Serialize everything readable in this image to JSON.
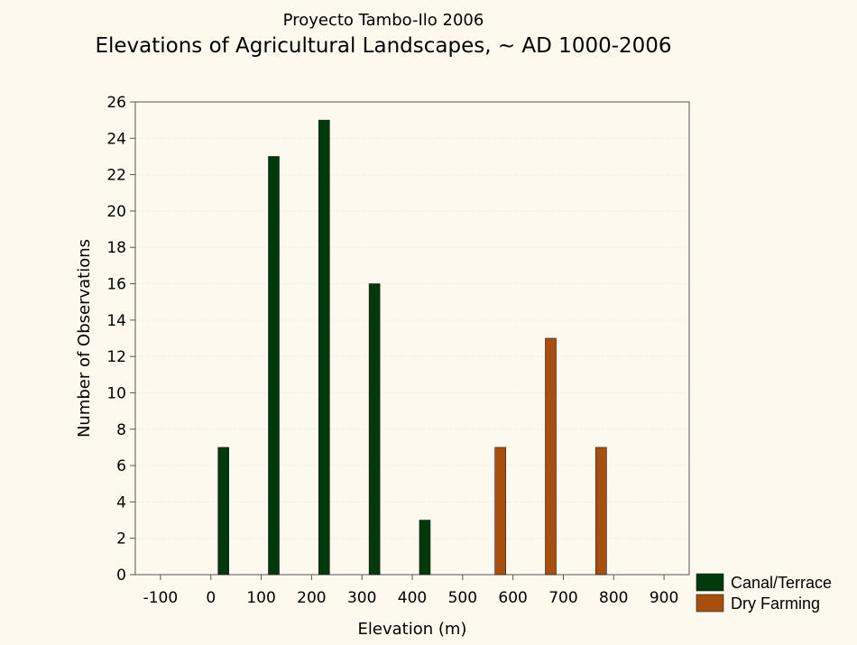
{
  "chart_data": {
    "type": "bar",
    "subtitle": "Proyecto Tambo-Ilo 2006",
    "title": "Elevations of Agricultural Landscapes, ~ AD 1000-2006",
    "xlabel": "Elevation (m)",
    "ylabel": "Number of Observations",
    "xlim": [
      -150,
      950
    ],
    "ylim": [
      0,
      26
    ],
    "x_ticks": [
      "-100",
      "0",
      "100",
      "200",
      "300",
      "400",
      "500",
      "600",
      "700",
      "800",
      "900"
    ],
    "y_ticks": [
      "0",
      "2",
      "4",
      "6",
      "8",
      "10",
      "12",
      "14",
      "16",
      "18",
      "20",
      "22",
      "24",
      "26"
    ],
    "grid": true,
    "legend_position": "bottom-right outside",
    "series": [
      {
        "name": "Canal/Terrace",
        "color": "#003a0c",
        "bars": [
          {
            "x": 0,
            "value": 7
          },
          {
            "x": 100,
            "value": 23
          },
          {
            "x": 200,
            "value": 25
          },
          {
            "x": 300,
            "value": 16
          },
          {
            "x": 400,
            "value": 3
          }
        ]
      },
      {
        "name": "Dry Farming",
        "color": "#a84f0e",
        "bars": [
          {
            "x": 550,
            "value": 7
          },
          {
            "x": 650,
            "value": 13
          },
          {
            "x": 750,
            "value": 7
          }
        ]
      }
    ]
  }
}
